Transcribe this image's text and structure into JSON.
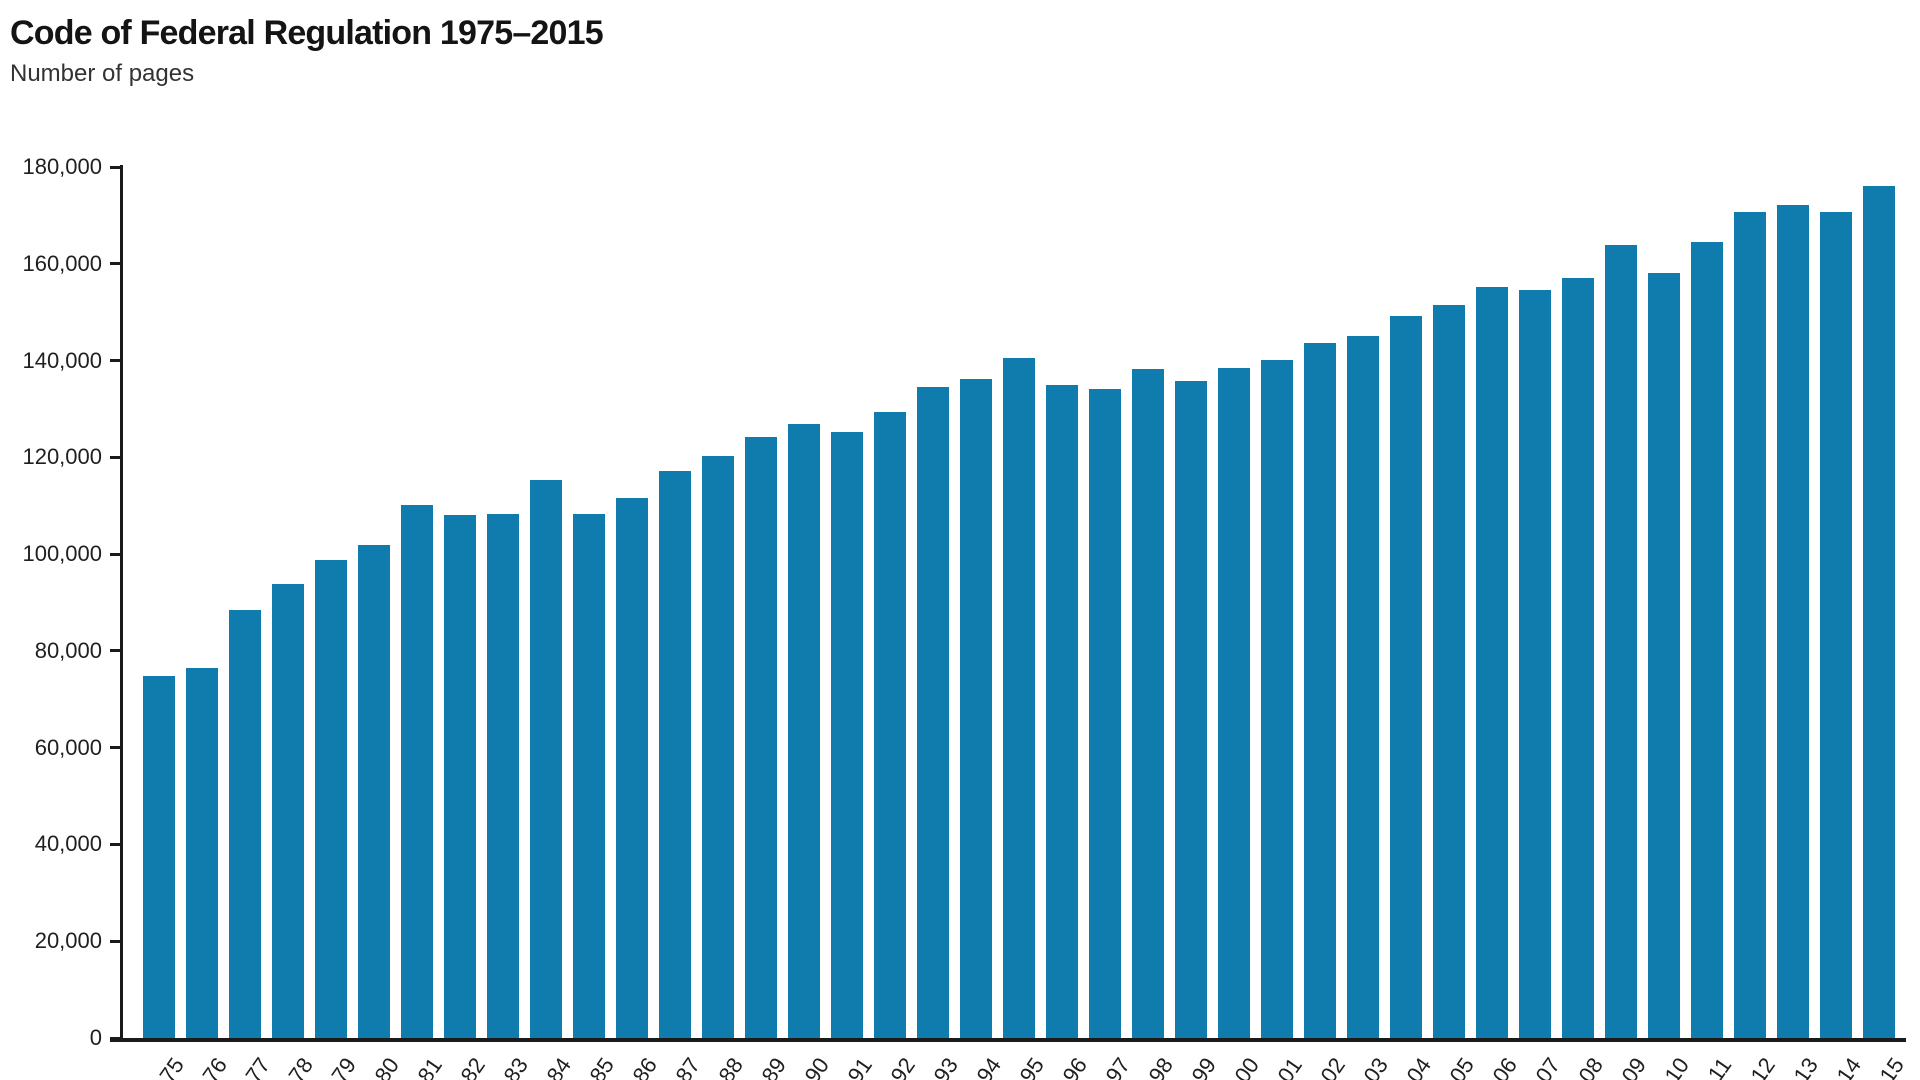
{
  "title": "Code of Federal Regulation 1975–2015",
  "subtitle": "Number of pages",
  "chart_data": {
    "type": "bar",
    "title": "Code of Federal Regulation 1975–2015",
    "subtitle": "Number of pages",
    "xlabel": "",
    "ylabel": "Number of pages",
    "ylim": [
      0,
      180000
    ],
    "ytick_step": 20000,
    "ytick_labels": [
      "0",
      "20,000",
      "40,000",
      "60,000",
      "80,000",
      "100,000",
      "120,000",
      "140,000",
      "160,000",
      "180,000"
    ],
    "grid": false,
    "legend_position": "none",
    "bar_color": "#0f7cad",
    "axis_color": "#1a1a1a",
    "categories": [
      "75",
      "76",
      "77",
      "78",
      "79",
      "80",
      "81",
      "82",
      "83",
      "84",
      "85",
      "86",
      "87",
      "88",
      "89",
      "90",
      "91",
      "92",
      "93",
      "94",
      "95",
      "96",
      "97",
      "98",
      "99",
      "00",
      "01",
      "02",
      "03",
      "04",
      "05",
      "06",
      "07",
      "08",
      "09",
      "10",
      "11",
      "12",
      "13",
      "14",
      "15"
    ],
    "years": [
      1975,
      1976,
      1977,
      1978,
      1979,
      1980,
      1981,
      1982,
      1983,
      1984,
      1985,
      1986,
      1987,
      1988,
      1989,
      1990,
      1991,
      1992,
      1993,
      1994,
      1995,
      1996,
      1997,
      1998,
      1999,
      2000,
      2001,
      2002,
      2003,
      2004,
      2005,
      2006,
      2007,
      2008,
      2009,
      2010,
      2011,
      2012,
      2013,
      2014,
      2015
    ],
    "values": [
      74900,
      76400,
      88500,
      93800,
      98800,
      101800,
      110100,
      108100,
      108300,
      115300,
      108300,
      111500,
      117200,
      120300,
      124200,
      126900,
      125300,
      129300,
      134500,
      136200,
      140600,
      135000,
      134100,
      138200,
      135800,
      138400,
      140200,
      143600,
      145000,
      149300,
      151500,
      155200,
      154600,
      157000,
      163800,
      158000,
      164600,
      170700,
      172100,
      170700,
      176000
    ]
  }
}
